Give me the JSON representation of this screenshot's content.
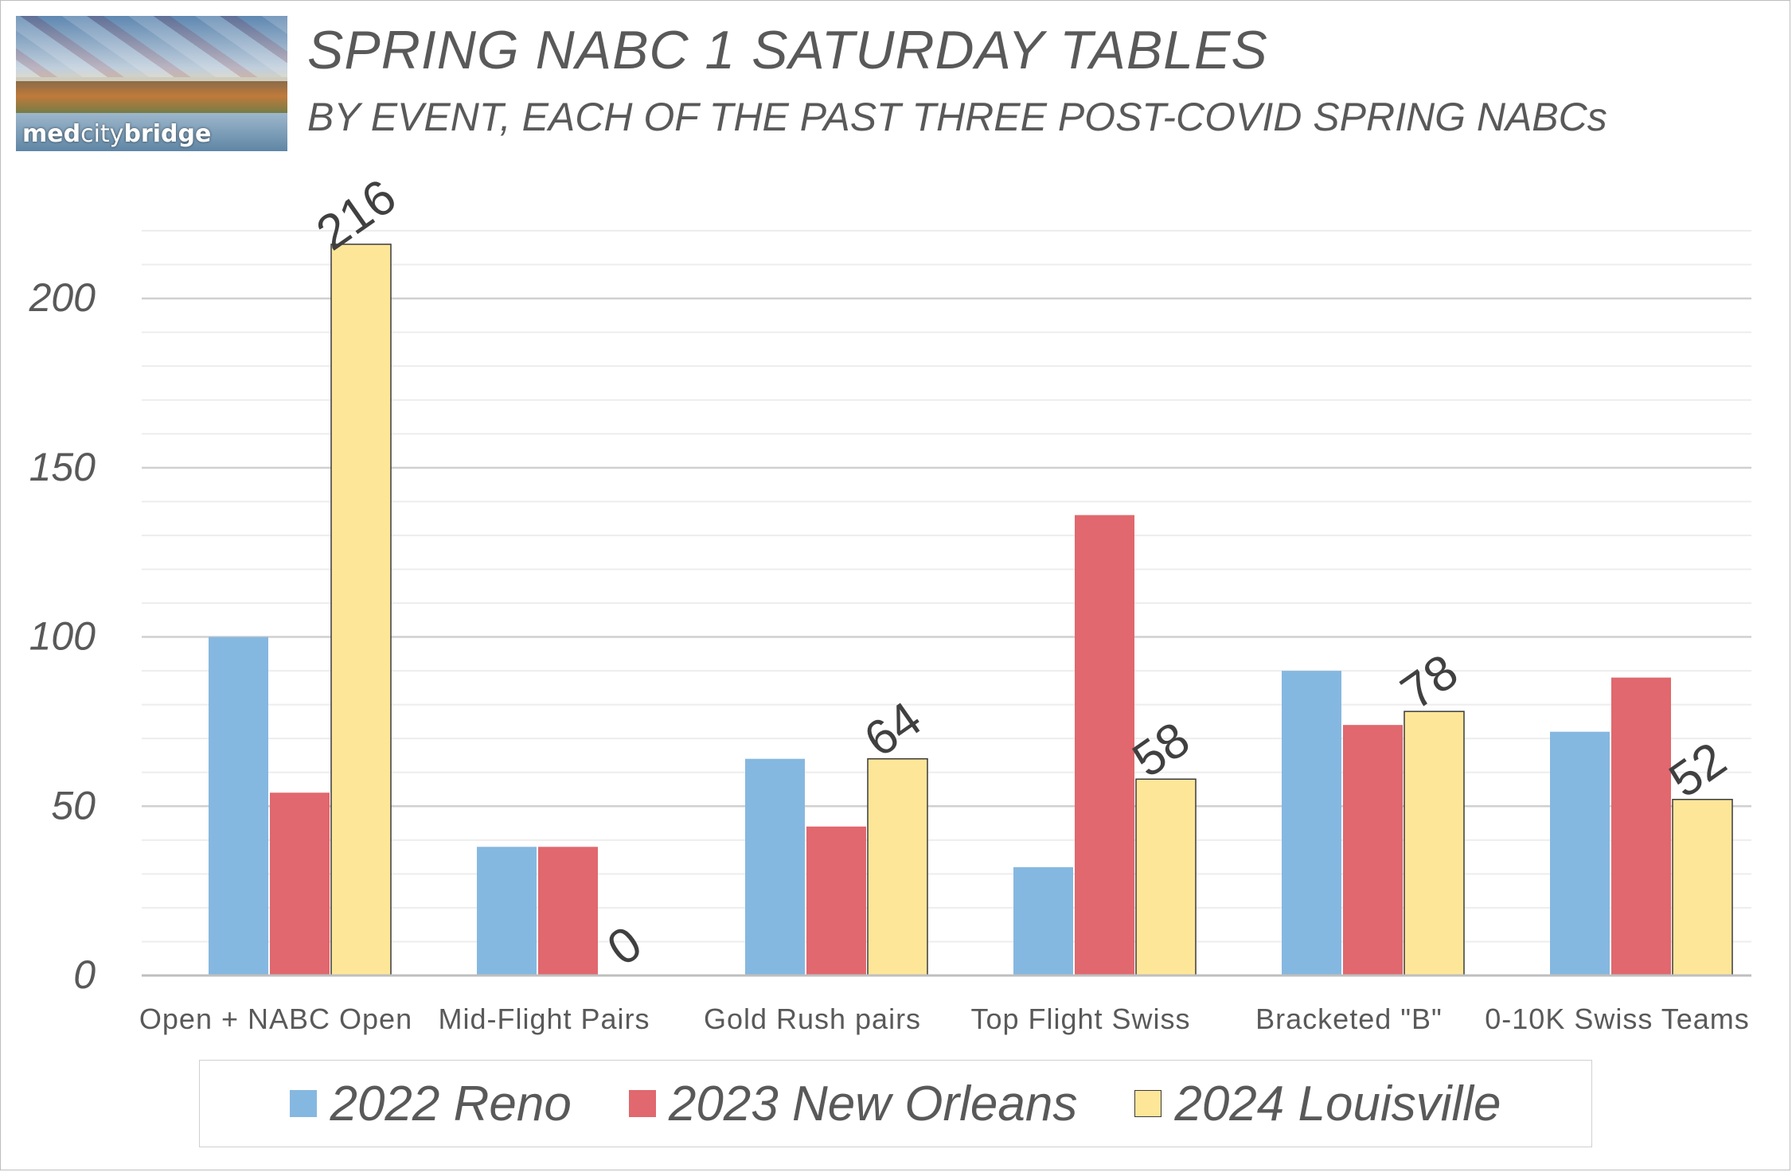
{
  "logo": {
    "text_bold": "med",
    "text_thin": "city",
    "text_end": "bridge"
  },
  "header": {
    "title": "SPRING NABC 1 SATURDAY TABLES",
    "subtitle": "BY EVENT, EACH OF THE PAST THREE POST-COVID SPRING NABCs"
  },
  "chart_data": {
    "type": "bar",
    "title": "SPRING NABC 1 SATURDAY TABLES",
    "subtitle": "BY EVENT, EACH OF THE PAST THREE POST-COVID SPRING NABCs",
    "categories": [
      "Open + NABC Open",
      "Mid-Flight Pairs",
      "Gold Rush pairs",
      "Top Flight Swiss",
      "Bracketed \"B\"",
      "0-10K Swiss Teams"
    ],
    "series": [
      {
        "name": "2022 Reno",
        "color": "#85b8e0",
        "values": [
          100,
          38,
          64,
          32,
          90,
          72
        ],
        "show_labels": false
      },
      {
        "name": "2023 New Orleans",
        "color": "#e0686e",
        "values": [
          54,
          38,
          44,
          136,
          74,
          88
        ],
        "show_labels": false
      },
      {
        "name": "2024 Louisville",
        "color": "#fee699",
        "values": [
          216,
          0,
          64,
          58,
          78,
          52
        ],
        "show_labels": true
      }
    ],
    "ylim": [
      0,
      220
    ],
    "yticks": [
      0,
      50,
      100,
      150,
      200
    ],
    "xlabel": "",
    "ylabel": "",
    "grid": true,
    "legend": "bottom"
  }
}
